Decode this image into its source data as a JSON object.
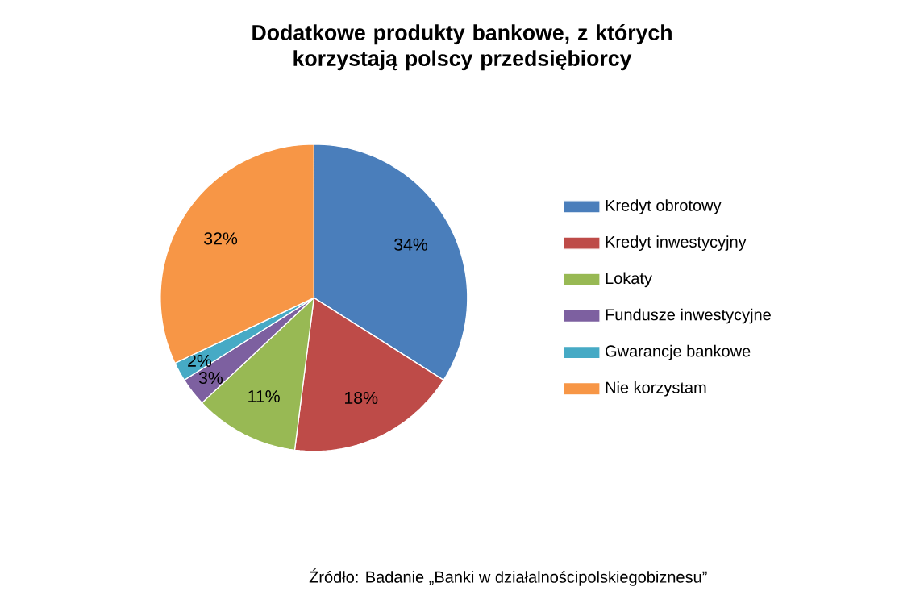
{
  "chart_data": {
    "type": "pie",
    "title": "Dodatkowe produkty bankowe, z których korzystają polscy przedsiębiorcy",
    "categories": [
      "Kredyt obrotowy",
      "Kredyt inwestycyjny",
      "Lokaty",
      "Fundusze inwestycyjne",
      "Gwarancje bankowe",
      "Nie korzystam"
    ],
    "values": [
      34,
      18,
      11,
      3,
      2,
      32
    ],
    "value_labels": [
      "34%",
      "18%",
      "11%",
      "3%",
      "2%",
      "32%"
    ],
    "colors": [
      "#4a7ebb",
      "#be4b48",
      "#98b954",
      "#7d60a0",
      "#46aac5",
      "#f79646"
    ],
    "legend": "right",
    "annotations": [
      "Źródło: Badanie „Banki w działalnościpolskiegobiznesu”"
    ]
  }
}
